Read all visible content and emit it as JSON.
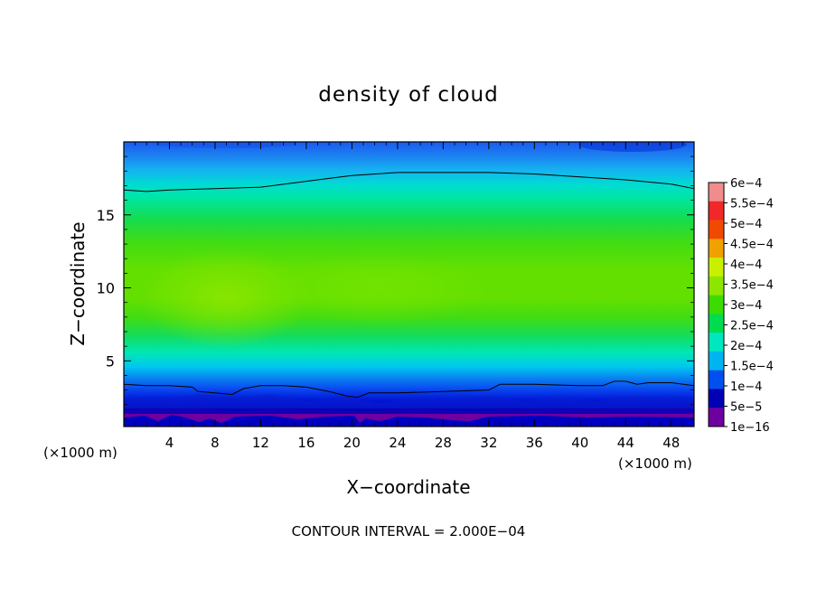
{
  "chart_data": {
    "type": "heatmap",
    "title": "density of cloud",
    "xlabel": "X−coordinate",
    "ylabel": "Z−coordinate",
    "x_unit_left": "(×1000 m)",
    "x_unit_right": "(×1000 m)",
    "xlim": [
      0,
      50
    ],
    "ylim": [
      0.5,
      20
    ],
    "xticks": [
      "4",
      "8",
      "12",
      "16",
      "20",
      "24",
      "28",
      "32",
      "36",
      "40",
      "44",
      "48"
    ],
    "xtick_values": [
      4,
      8,
      12,
      16,
      20,
      24,
      28,
      32,
      36,
      40,
      44,
      48
    ],
    "yticks": [
      "5",
      "10",
      "15"
    ],
    "ytick_values": [
      5,
      10,
      15
    ],
    "contour_interval_text": "CONTOUR INTERVAL = 2.000E−04",
    "contour_interval": 0.0002,
    "colorbar": {
      "labels": [
        "6e−4",
        "5.5e−4",
        "5e−4",
        "4.5e−4",
        "4e−4",
        "3.5e−4",
        "3e−4",
        "2.5e−4",
        "2e−4",
        "1.5e−4",
        "1e−4",
        "5e−5",
        "1e−16"
      ],
      "levels": [
        0.0006,
        0.00055,
        0.0005,
        0.00045,
        0.0004,
        0.00035,
        0.0003,
        0.00025,
        0.0002,
        0.00015,
        0.0001,
        5e-05,
        1e-16
      ],
      "colors": [
        "#f08c8c",
        "#f02828",
        "#f04a00",
        "#f0a000",
        "#c8f000",
        "#8ce600",
        "#3cdc00",
        "#00dc50",
        "#00e6be",
        "#00b4f0",
        "#0050f0",
        "#0000b4",
        "#6e00a0"
      ]
    },
    "contour_lines": [
      {
        "level": 0.0002,
        "x": [
          0,
          2,
          4,
          8,
          12,
          16,
          20,
          24,
          28,
          32,
          36,
          40,
          44,
          48,
          50
        ],
        "z": [
          16.7,
          16.6,
          16.7,
          16.8,
          16.9,
          17.3,
          17.7,
          17.9,
          17.9,
          17.9,
          17.8,
          17.6,
          17.4,
          17.1,
          16.8
        ]
      },
      {
        "level": 0.0002,
        "x": [
          0,
          2,
          4,
          6,
          6.5,
          8,
          9.5,
          10.5,
          12,
          14,
          16,
          18,
          19.5,
          20.5,
          21.5,
          24,
          28,
          32,
          33,
          36,
          40,
          42,
          43,
          44,
          45,
          46,
          48,
          50
        ],
        "z": [
          3.4,
          3.3,
          3.3,
          3.2,
          2.9,
          2.8,
          2.7,
          3.1,
          3.3,
          3.3,
          3.2,
          2.9,
          2.6,
          2.5,
          2.8,
          2.8,
          2.9,
          3.0,
          3.4,
          3.4,
          3.3,
          3.3,
          3.6,
          3.6,
          3.4,
          3.5,
          3.5,
          3.3
        ]
      }
    ]
  }
}
